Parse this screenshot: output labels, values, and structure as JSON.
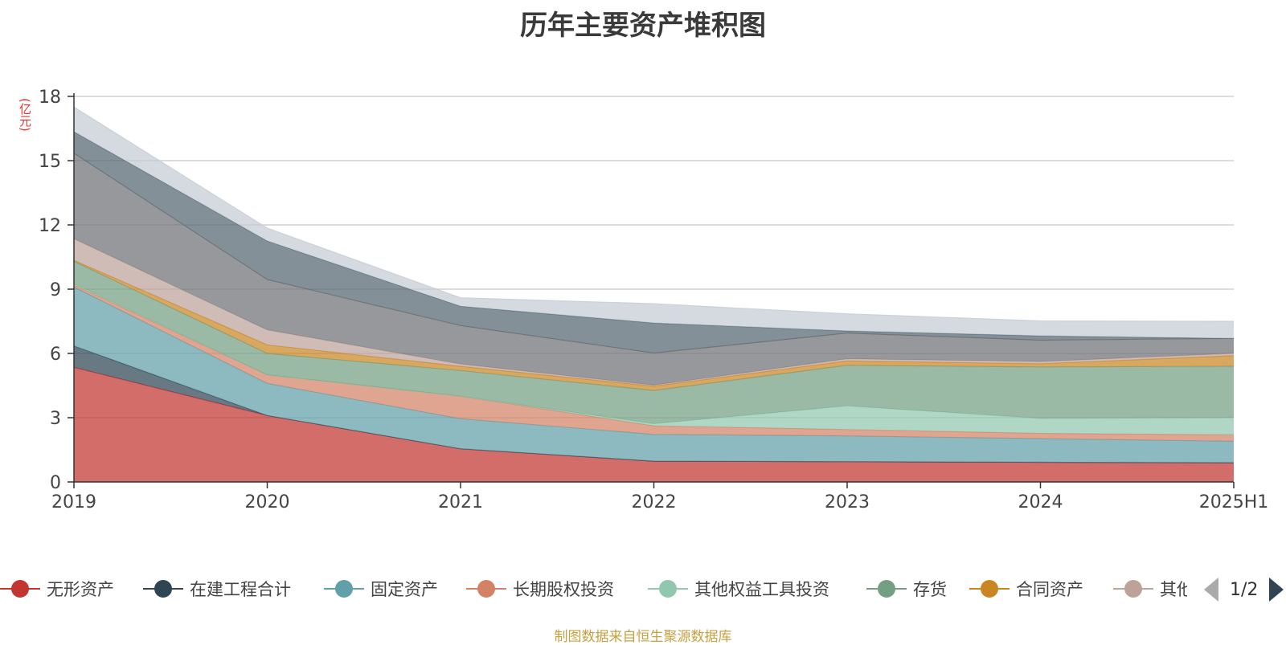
{
  "title": "历年主要资产堆积图",
  "unit": "(亿元)",
  "source": "制图数据来自恒生聚源数据库",
  "pager": {
    "text": "1/2"
  },
  "chart_data": {
    "type": "area",
    "stacked": true,
    "x": [
      "2019",
      "2020",
      "2021",
      "2022",
      "2023",
      "2024",
      "2025H1"
    ],
    "ylim": [
      0,
      18
    ],
    "yticks": [
      "0",
      "3",
      "6",
      "9",
      "12",
      "15",
      "18"
    ],
    "grid": true,
    "legend_position": "bottom",
    "series": [
      {
        "name": "无形资产",
        "color": "#c23531",
        "values": [
          5.35,
          3.1,
          1.55,
          0.97,
          0.95,
          0.92,
          0.9
        ]
      },
      {
        "name": "在建工程合计",
        "color": "#2f4554",
        "values": [
          1.0,
          0,
          0,
          0,
          0,
          0,
          0
        ]
      },
      {
        "name": "固定资产",
        "color": "#61a0a8",
        "values": [
          2.75,
          1.5,
          1.4,
          1.25,
          1.2,
          1.1,
          1.0
        ]
      },
      {
        "name": "长期股权投资",
        "color": "#d48265",
        "values": [
          0.1,
          0.4,
          1.05,
          0.4,
          0.3,
          0.25,
          0.3
        ]
      },
      {
        "name": "其他权益工具投资",
        "color": "#91c7ae",
        "values": [
          0.05,
          0,
          0,
          0.1,
          1.1,
          0.7,
          0.8
        ]
      },
      {
        "name": "存货",
        "color": "#749f83",
        "values": [
          1.05,
          1.0,
          1.2,
          1.55,
          1.9,
          2.4,
          2.4
        ]
      },
      {
        "name": "合同资产",
        "color": "#ca8622",
        "values": [
          0.05,
          0.4,
          0.2,
          0.2,
          0.2,
          0.15,
          0.5
        ]
      },
      {
        "name": "其他",
        "color": "#bda29a",
        "values": [
          1.0,
          0.7,
          0.1,
          0.05,
          0.1,
          0.1,
          0.1
        ]
      },
      {
        "name": "",
        "color": "#6e7074",
        "values": [
          4.0,
          2.35,
          1.8,
          1.5,
          1.2,
          1.0,
          0.7
        ]
      },
      {
        "name": "",
        "color": "#546570",
        "values": [
          1.0,
          1.8,
          0.9,
          1.4,
          0.1,
          0.2,
          0.0
        ]
      },
      {
        "name": "",
        "color": "#c4ccd3",
        "values": [
          1.15,
          0.6,
          0.4,
          0.9,
          0.8,
          0.7,
          0.8
        ]
      }
    ]
  }
}
